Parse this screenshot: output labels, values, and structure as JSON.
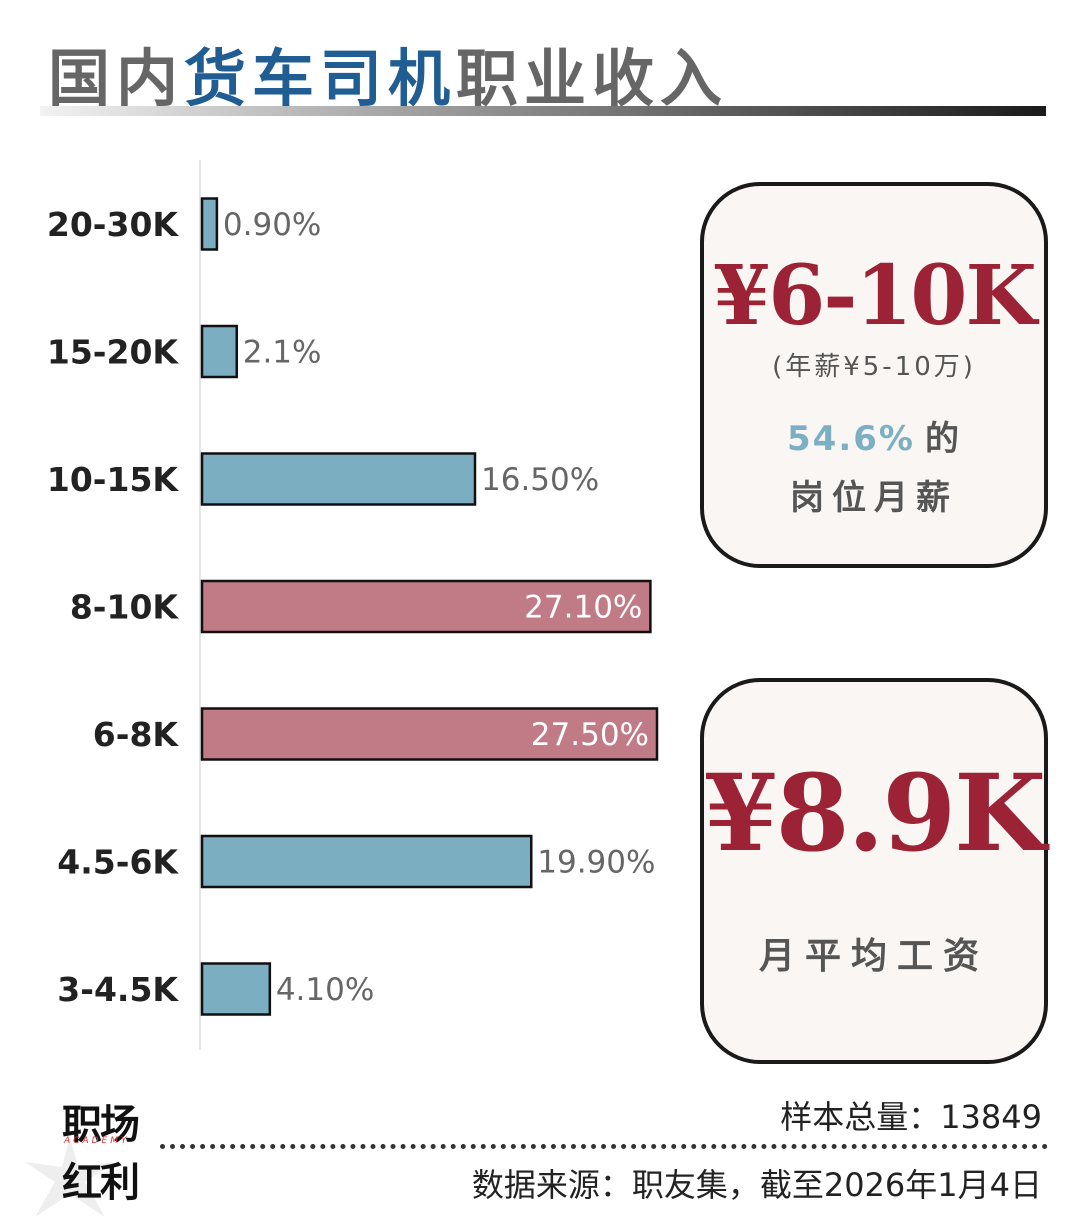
{
  "title": {
    "part1": "国内",
    "part2": "货车司机",
    "part3": "职业收入"
  },
  "chart_data": {
    "type": "bar",
    "orientation": "horizontal",
    "categories": [
      "20-30K",
      "15-20K",
      "10-15K",
      "8-10K",
      "6-8K",
      "4.5-6K",
      "3-4.5K"
    ],
    "values": [
      0.9,
      2.1,
      16.5,
      27.1,
      27.5,
      19.9,
      4.1
    ],
    "value_labels": [
      "0.90%",
      "2.1%",
      "16.50%",
      "27.10%",
      "27.50%",
      "19.90%",
      "4.10%"
    ],
    "highlighted": [
      false,
      false,
      false,
      true,
      true,
      false,
      false
    ],
    "colors": {
      "normal": "#7aaec0",
      "highlight": "#c07b86",
      "outline": "#111111"
    }
  },
  "cards": {
    "range": {
      "value": "¥6-10K",
      "sub": "(年薪¥5-10万)",
      "pct": "54.6%",
      "pct_suffix": "的",
      "label": "岗位月薪"
    },
    "average": {
      "value": "¥8.9K",
      "label": "月平均工资"
    }
  },
  "logo": {
    "top": "职场",
    "academy": "ACADEMY",
    "bottom": "红利"
  },
  "footer": {
    "sample": "样本总量：13849",
    "source": "数据来源：职友集，截至2026年1月4日"
  }
}
